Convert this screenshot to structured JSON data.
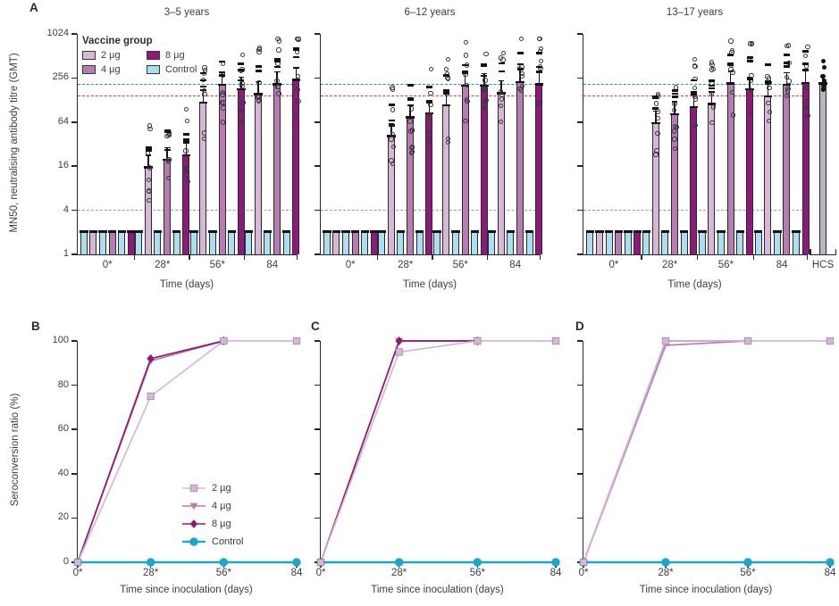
{
  "panels": {
    "a": "A",
    "b": "B",
    "c": "C",
    "d": "D"
  },
  "colors": {
    "dose2": "#d7b7d6",
    "dose4": "#b77cb2",
    "dose8": "#8c1a78",
    "control_bar": "#abdff0",
    "control_line": "#1ba6cf",
    "hcs": "#b6b6bd",
    "axis": "#29262b",
    "text": "#3d3d40"
  },
  "legend_a": {
    "title": "Vaccine group",
    "items": [
      {
        "label": "2 µg",
        "key": "dose2"
      },
      {
        "label": "8 µg",
        "key": "dose8"
      },
      {
        "label": "4 µg",
        "key": "dose4"
      },
      {
        "label": "Control",
        "key": "control_bar"
      }
    ]
  },
  "legend_b": {
    "items": [
      {
        "label": "2 µg",
        "key": "dose2",
        "marker": "square"
      },
      {
        "label": "4 µg",
        "key": "dose4",
        "marker": "triangle"
      },
      {
        "label": "8 µg",
        "key": "dose8",
        "marker": "diamond"
      },
      {
        "label": "Control",
        "key": "control_line",
        "marker": "circle"
      }
    ]
  },
  "hcs": {
    "label": "HCS",
    "value": 210,
    "points": [
      180,
      205,
      215,
      235,
      270,
      360,
      440
    ]
  },
  "chart_data": [
    {
      "type": "bar",
      "title": "3–5 years",
      "xlabel": "Time (days)",
      "ylabel": "MN50, neutralising antibody titre (GMT)",
      "yscale": "log4",
      "ylim": [
        1,
        1024
      ],
      "yticks": [
        1,
        4,
        16,
        64,
        256,
        1024
      ],
      "ytick_labels": true,
      "categories": [
        "0*",
        "28*",
        "56*",
        "84"
      ],
      "series": [
        {
          "name": "2 µg",
          "key": "dose2",
          "values": [
            2,
            15,
            115,
            150
          ]
        },
        {
          "name": "4 µg",
          "key": "dose4",
          "values": [
            2,
            19,
            200,
            205
          ]
        },
        {
          "name": "8 µg",
          "key": "dose8",
          "values": [
            2,
            22,
            175,
            235
          ]
        },
        {
          "name": "Control",
          "key": "control_bar",
          "values": [
            2,
            2,
            2,
            2
          ]
        }
      ],
      "ref_lines": [
        {
          "value": 210,
          "color": "#3e7ec0"
        },
        {
          "value": 145,
          "color": "#ee3a2c"
        },
        {
          "value": 4,
          "color": "#70a9c0"
        }
      ]
    },
    {
      "type": "bar",
      "title": "6–12 years",
      "xlabel": "Time (days)",
      "yscale": "log4",
      "ylim": [
        1,
        1024
      ],
      "yticks": [
        1,
        4,
        16,
        64,
        256,
        1024
      ],
      "ytick_labels": false,
      "categories": [
        "0*",
        "28*",
        "56*",
        "84"
      ],
      "series": [
        {
          "name": "2 µg",
          "key": "dose2",
          "values": [
            2,
            40,
            105,
            155
          ]
        },
        {
          "name": "4 µg",
          "key": "dose4",
          "values": [
            2,
            72,
            195,
            220
          ]
        },
        {
          "name": "8 µg",
          "key": "dose8",
          "values": [
            2,
            82,
            195,
            205
          ]
        },
        {
          "name": "Control",
          "key": "control_bar",
          "values": [
            2,
            2,
            2,
            2
          ]
        }
      ],
      "ref_lines": [
        {
          "value": 210,
          "color": "#3e7ec0"
        },
        {
          "value": 145,
          "color": "#ee3a2c"
        },
        {
          "value": 4,
          "color": "#70a9c0"
        }
      ]
    },
    {
      "type": "bar",
      "title": "13–17 years",
      "xlabel": "Time (days)",
      "yscale": "log4",
      "ylim": [
        1,
        1024
      ],
      "yticks": [
        1,
        4,
        16,
        64,
        256,
        1024
      ],
      "ytick_labels": false,
      "categories": [
        "0*",
        "28*",
        "56*",
        "84"
      ],
      "series": [
        {
          "name": "2 µg",
          "key": "dose2",
          "values": [
            2,
            60,
            110,
            140
          ]
        },
        {
          "name": "4 µg",
          "key": "dose4",
          "values": [
            2,
            80,
            210,
            200
          ]
        },
        {
          "name": "8 µg",
          "key": "dose8",
          "values": [
            2,
            100,
            175,
            212
          ]
        },
        {
          "name": "Control",
          "key": "control_bar",
          "values": [
            2,
            2,
            2,
            2
          ]
        }
      ],
      "ref_lines": [
        {
          "value": 210,
          "color": "#3e7ec0"
        },
        {
          "value": 145,
          "color": "#ee3a2c"
        },
        {
          "value": 4,
          "color": "#70a9c0"
        }
      ]
    },
    {
      "type": "line",
      "title": "3–5 years",
      "xlabel": "Time since inoculation (days)",
      "ylabel": "Seroconversion ratio (%)",
      "ylim": [
        0,
        100
      ],
      "yticks": [
        0,
        20,
        40,
        60,
        80,
        100
      ],
      "ytick_labels": true,
      "categories": [
        "0*",
        "28*",
        "56*",
        "84"
      ],
      "series": [
        {
          "name": "Control",
          "key": "control_line",
          "marker": "circle",
          "values": [
            0,
            0,
            0,
            0
          ]
        },
        {
          "name": "4 µg",
          "key": "dose4",
          "marker": "triangle",
          "values": [
            0,
            91,
            100,
            null
          ]
        },
        {
          "name": "8 µg",
          "key": "dose8",
          "marker": "diamond",
          "values": [
            0,
            92,
            100,
            null
          ]
        },
        {
          "name": "2 µg",
          "key": "dose2",
          "marker": "square",
          "values": [
            0,
            75,
            100,
            100
          ]
        }
      ]
    },
    {
      "type": "line",
      "title": "6–12 years",
      "xlabel": "Time since inoculation (days)",
      "ylim": [
        0,
        100
      ],
      "yticks": [
        0,
        20,
        40,
        60,
        80,
        100
      ],
      "ytick_labels": false,
      "categories": [
        "0*",
        "28*",
        "56*",
        "84"
      ],
      "series": [
        {
          "name": "Control",
          "key": "control_line",
          "marker": "circle",
          "values": [
            0,
            0,
            0,
            0
          ]
        },
        {
          "name": "4 µg",
          "key": "dose4",
          "marker": "triangle",
          "values": [
            0,
            100,
            100,
            null
          ]
        },
        {
          "name": "8 µg",
          "key": "dose8",
          "marker": "diamond",
          "values": [
            0,
            100,
            100,
            null
          ]
        },
        {
          "name": "2 µg",
          "key": "dose2",
          "marker": "square",
          "values": [
            0,
            95,
            100,
            100
          ]
        }
      ]
    },
    {
      "type": "line",
      "title": "13–17 years",
      "xlabel": "Time since inoculation (days)",
      "ylim": [
        0,
        100
      ],
      "yticks": [
        0,
        20,
        40,
        60,
        80,
        100
      ],
      "ytick_labels": false,
      "categories": [
        "0*",
        "28*",
        "56*",
        "84"
      ],
      "series": [
        {
          "name": "Control",
          "key": "control_line",
          "marker": "circle",
          "values": [
            0,
            0,
            0,
            0
          ]
        },
        {
          "name": "4 µg",
          "key": "dose4",
          "marker": "none",
          "values": [
            0,
            98,
            100,
            null
          ]
        },
        {
          "name": "8 µg",
          "key": "dose8",
          "marker": "none",
          "values": [
            0,
            100,
            100,
            null
          ]
        },
        {
          "name": "2 µg",
          "key": "dose2",
          "marker": "square",
          "values": [
            0,
            100,
            100,
            100
          ]
        }
      ]
    }
  ]
}
